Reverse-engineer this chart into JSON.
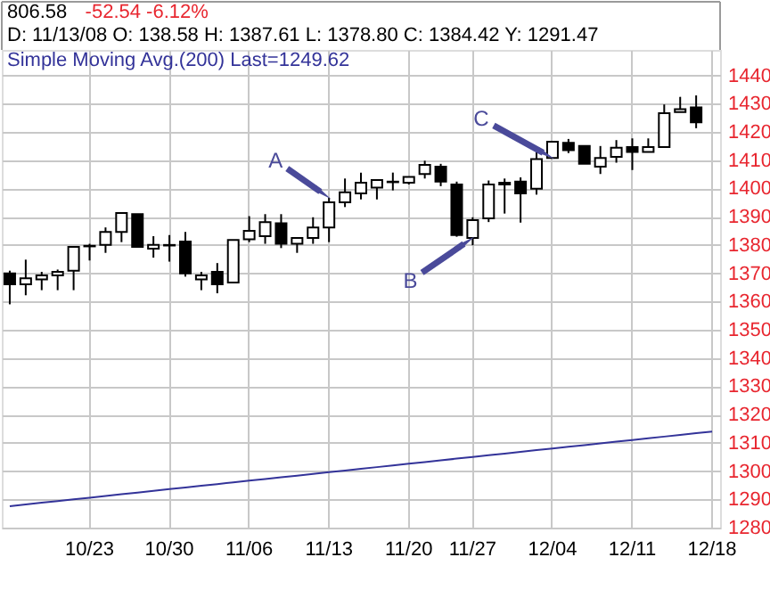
{
  "chart_data": {
    "type": "candlestick",
    "categories": [
      null,
      null,
      null,
      null,
      null,
      "10/23",
      null,
      null,
      null,
      null,
      "10/30",
      null,
      null,
      null,
      null,
      "11/06",
      null,
      null,
      null,
      null,
      "11/13",
      null,
      null,
      null,
      null,
      "11/20",
      null,
      null,
      null,
      "11/27",
      null,
      null,
      null,
      null,
      "12/04",
      null,
      null,
      null,
      null,
      "12/11",
      null,
      null,
      null,
      null,
      "12/18"
    ],
    "ohlc": [
      [
        1369.9,
        1370.9,
        1359.0,
        1366.1
      ],
      [
        1366.1,
        1374.8,
        1362.2,
        1368.2
      ],
      [
        1367.8,
        1370.5,
        1364.0,
        1369.2
      ],
      [
        1369.2,
        1371.3,
        1364.0,
        1370.5
      ],
      [
        1370.9,
        1379.3,
        1364.0,
        1379.3
      ],
      [
        1379.5,
        1380.4,
        1374.5,
        1379.7
      ],
      [
        1380.0,
        1386.2,
        1377.2,
        1384.6
      ],
      [
        1384.6,
        1391.3,
        1381.0,
        1391.3
      ],
      [
        1390.9,
        1390.9,
        1379.3,
        1379.3
      ],
      [
        1378.7,
        1383.1,
        1375.5,
        1380.0
      ],
      [
        1379.8,
        1383.5,
        1374.1,
        1380.0
      ],
      [
        1381.2,
        1384.6,
        1368.8,
        1369.9
      ],
      [
        1367.8,
        1370.5,
        1364.0,
        1369.2
      ],
      [
        1370.5,
        1373.6,
        1362.9,
        1366.1
      ],
      [
        1366.7,
        1381.8,
        1366.7,
        1381.8
      ],
      [
        1382.0,
        1390.2,
        1381.0,
        1385.0
      ],
      [
        1383.1,
        1390.9,
        1380.4,
        1388.1
      ],
      [
        1387.7,
        1390.9,
        1378.9,
        1380.4
      ],
      [
        1380.4,
        1382.5,
        1377.2,
        1382.5
      ],
      [
        1382.5,
        1389.8,
        1380.4,
        1386.2
      ],
      [
        1386.2,
        1396.7,
        1381.0,
        1395.1
      ],
      [
        1395.1,
        1403.5,
        1393.4,
        1398.6
      ],
      [
        1398.2,
        1405.6,
        1396.1,
        1402.0
      ],
      [
        1400.3,
        1403.0,
        1396.1,
        1403.0
      ],
      [
        1402.2,
        1405.6,
        1399.3,
        1402.4
      ],
      [
        1402.0,
        1404.1,
        1401.4,
        1404.1
      ],
      [
        1405.1,
        1409.8,
        1403.5,
        1408.3
      ],
      [
        1407.7,
        1408.7,
        1400.8,
        1402.4
      ],
      [
        1401.4,
        1402.4,
        1382.9,
        1383.5
      ],
      [
        1382.5,
        1389.8,
        1379.9,
        1388.8
      ],
      [
        1389.4,
        1402.8,
        1388.1,
        1401.4
      ],
      [
        1402.0,
        1403.5,
        1391.1,
        1401.4
      ],
      [
        1402.4,
        1403.9,
        1387.9,
        1398.2
      ],
      [
        1399.9,
        1412.9,
        1397.8,
        1410.4
      ],
      [
        1410.8,
        1416.5,
        1410.8,
        1416.5
      ],
      [
        1416.1,
        1417.5,
        1412.5,
        1413.5
      ],
      [
        1415.0,
        1415.0,
        1408.7,
        1408.7
      ],
      [
        1407.7,
        1415.0,
        1405.1,
        1410.8
      ],
      [
        1411.2,
        1417.1,
        1409.1,
        1414.4
      ],
      [
        1414.6,
        1417.7,
        1406.5,
        1412.9
      ],
      [
        1412.9,
        1417.7,
        1412.9,
        1414.6
      ],
      [
        1414.6,
        1429.7,
        1414.6,
        1426.6
      ],
      [
        1427.0,
        1432.4,
        1427.0,
        1428.0
      ],
      [
        1428.7,
        1432.9,
        1421.3,
        1423.4
      ],
      null
    ],
    "series": [
      {
        "name": "Simple Moving Avg.(200) Last=1249.62",
        "type": "line",
        "color": "#333399",
        "values": [
          1287.6,
          1288.2,
          1288.8,
          1289.4,
          1290.0,
          1290.6,
          1291.2,
          1291.8,
          1292.4,
          1293.0,
          1293.6,
          1294.2,
          1294.8,
          1295.4,
          1296.0,
          1296.6,
          1297.2,
          1297.8,
          1298.4,
          1299.0,
          1299.6,
          1300.2,
          1300.8,
          1301.4,
          1302.0,
          1302.6,
          1303.2,
          1303.8,
          1304.4,
          1305.0,
          1305.6,
          1306.2,
          1306.8,
          1307.4,
          1308.0,
          1308.6,
          1309.2,
          1309.8,
          1310.4,
          1311.0,
          1311.6,
          1312.2,
          1312.8,
          1313.4,
          1314.0
        ]
      }
    ],
    "annotations": [
      "806.58",
      "-52.54 -6.12%",
      "D: 11/13/08 O: 138.58 H: 1387.61 L: 1378.80 C: 1384.42 Y: 1291.47",
      {
        "text": "A",
        "x": "11/13",
        "y": 1396.7
      },
      {
        "text": "B",
        "x": "11/27",
        "y": 1382.5
      },
      {
        "text": "C",
        "x": "12/04",
        "y": 1410.8
      }
    ],
    "ylim": [
      1280,
      1449
    ],
    "yticks": [
      1280,
      1290,
      1300,
      1310,
      1320,
      1330,
      1340,
      1350,
      1360,
      1370,
      1380,
      1390,
      1400,
      1410,
      1420,
      1430,
      1440
    ],
    "grid": true
  }
}
